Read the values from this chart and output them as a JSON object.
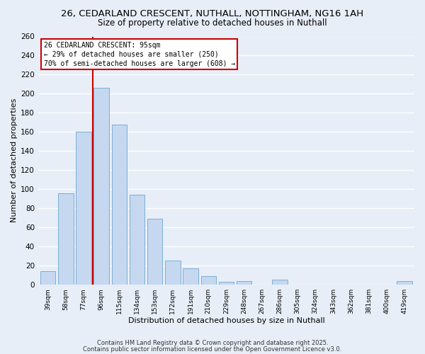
{
  "title": "26, CEDARLAND CRESCENT, NUTHALL, NOTTINGHAM, NG16 1AH",
  "subtitle": "Size of property relative to detached houses in Nuthall",
  "xlabel": "Distribution of detached houses by size in Nuthall",
  "ylabel": "Number of detached properties",
  "bar_labels": [
    "39sqm",
    "58sqm",
    "77sqm",
    "96sqm",
    "115sqm",
    "134sqm",
    "153sqm",
    "172sqm",
    "191sqm",
    "210sqm",
    "229sqm",
    "248sqm",
    "267sqm",
    "286sqm",
    "305sqm",
    "324sqm",
    "343sqm",
    "362sqm",
    "381sqm",
    "400sqm",
    "419sqm"
  ],
  "bar_values": [
    14,
    96,
    160,
    206,
    168,
    94,
    69,
    25,
    17,
    9,
    3,
    4,
    0,
    5,
    0,
    0,
    0,
    0,
    0,
    0,
    4
  ],
  "bar_color": "#c5d8f0",
  "bar_edge_color": "#7bafd4",
  "vline_index": 3,
  "vline_color": "#cc0000",
  "ylim": [
    0,
    260
  ],
  "yticks": [
    0,
    20,
    40,
    60,
    80,
    100,
    120,
    140,
    160,
    180,
    200,
    220,
    240,
    260
  ],
  "annotation_title": "26 CEDARLAND CRESCENT: 95sqm",
  "annotation_line1": "← 29% of detached houses are smaller (250)",
  "annotation_line2": "70% of semi-detached houses are larger (608) →",
  "annotation_box_color": "#ffffff",
  "annotation_box_edge": "#cc0000",
  "footer_line1": "Contains HM Land Registry data © Crown copyright and database right 2025.",
  "footer_line2": "Contains public sector information licensed under the Open Government Licence v3.0.",
  "background_color": "#e8eef8",
  "grid_color": "#ffffff",
  "title_fontsize": 9.5,
  "subtitle_fontsize": 8.5
}
